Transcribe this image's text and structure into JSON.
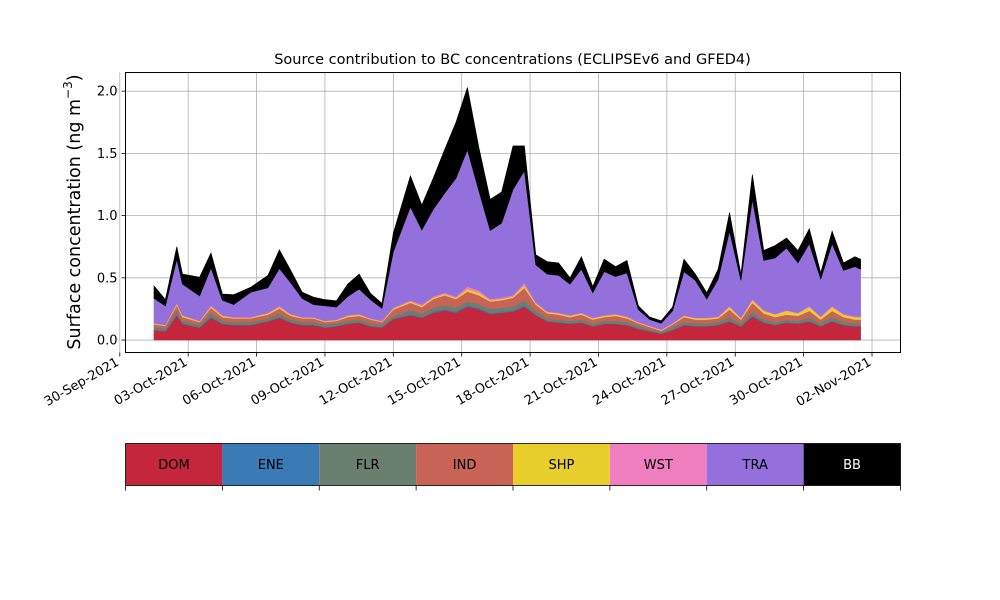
{
  "chart_data": {
    "type": "area",
    "stacked": true,
    "title": "Source contribution to BC concentrations (ECLIPSEv6 and GFED4)",
    "ylabel": "Surface concentration (ng m",
    "ylabel_sup": "−3",
    "ylabel_close": ")",
    "ylim": [
      -0.1,
      2.15
    ],
    "yticks": [
      0.0,
      0.5,
      1.0,
      1.5,
      2.0
    ],
    "ytick_labels": [
      "0.0",
      "0.5",
      "1.0",
      "1.5",
      "2.0"
    ],
    "xlim": [
      "2021-09-30T06:00",
      "2021-11-03T06:00"
    ],
    "xticks": [
      "2021-09-30",
      "2021-10-03",
      "2021-10-06",
      "2021-10-09",
      "2021-10-12",
      "2021-10-15",
      "2021-10-18",
      "2021-10-21",
      "2021-10-24",
      "2021-10-27",
      "2021-10-30",
      "2021-11-02"
    ],
    "xtick_labels": [
      "30-Sep-2021",
      "03-Oct-2021",
      "06-Oct-2021",
      "09-Oct-2021",
      "12-Oct-2021",
      "15-Oct-2021",
      "18-Oct-2021",
      "21-Oct-2021",
      "24-Oct-2021",
      "27-Oct-2021",
      "30-Oct-2021",
      "02-Nov-2021"
    ],
    "grid": true,
    "legend_position": "bottom colorbar",
    "x": [
      "2021-10-01T12:00",
      "2021-10-02T00:00",
      "2021-10-02T12:00",
      "2021-10-02T18:00",
      "2021-10-03T12:00",
      "2021-10-04T00:00",
      "2021-10-04T12:00",
      "2021-10-05T00:00",
      "2021-10-05T18:00",
      "2021-10-06T12:00",
      "2021-10-07T00:00",
      "2021-10-07T12:00",
      "2021-10-08T00:00",
      "2021-10-08T12:00",
      "2021-10-09T00:00",
      "2021-10-09T12:00",
      "2021-10-10T00:00",
      "2021-10-10T12:00",
      "2021-10-11T00:00",
      "2021-10-11T12:00",
      "2021-10-12T00:00",
      "2021-10-12T18:00",
      "2021-10-13T06:00",
      "2021-10-13T18:00",
      "2021-10-14T06:00",
      "2021-10-14T18:00",
      "2021-10-15T06:00",
      "2021-10-15T18:00",
      "2021-10-16T06:00",
      "2021-10-16T18:00",
      "2021-10-17T06:00",
      "2021-10-17T18:00",
      "2021-10-18T06:00",
      "2021-10-18T18:00",
      "2021-10-19T06:00",
      "2021-10-19T18:00",
      "2021-10-20T06:00",
      "2021-10-20T18:00",
      "2021-10-21T06:00",
      "2021-10-21T18:00",
      "2021-10-22T06:00",
      "2021-10-22T18:00",
      "2021-10-23T06:00",
      "2021-10-23T18:00",
      "2021-10-24T06:00",
      "2021-10-24T18:00",
      "2021-10-25T06:00",
      "2021-10-25T18:00",
      "2021-10-26T06:00",
      "2021-10-26T18:00",
      "2021-10-27T06:00",
      "2021-10-27T18:00",
      "2021-10-28T06:00",
      "2021-10-28T18:00",
      "2021-10-29T06:00",
      "2021-10-29T18:00",
      "2021-10-30T06:00",
      "2021-10-30T18:00",
      "2021-10-31T06:00",
      "2021-10-31T18:00",
      "2021-11-01T06:00",
      "2021-11-01T12:00"
    ],
    "series": [
      {
        "name": "DOM",
        "color": "#c4273b",
        "values": [
          0.08,
          0.07,
          0.2,
          0.13,
          0.1,
          0.18,
          0.13,
          0.12,
          0.12,
          0.15,
          0.18,
          0.14,
          0.12,
          0.12,
          0.1,
          0.11,
          0.13,
          0.14,
          0.11,
          0.1,
          0.17,
          0.2,
          0.18,
          0.22,
          0.24,
          0.22,
          0.27,
          0.25,
          0.21,
          0.22,
          0.23,
          0.27,
          0.2,
          0.15,
          0.14,
          0.13,
          0.14,
          0.11,
          0.13,
          0.13,
          0.12,
          0.09,
          0.07,
          0.05,
          0.08,
          0.12,
          0.11,
          0.11,
          0.12,
          0.15,
          0.11,
          0.19,
          0.14,
          0.12,
          0.14,
          0.13,
          0.15,
          0.11,
          0.15,
          0.12,
          0.11,
          0.11
        ]
      },
      {
        "name": "ENE",
        "color": "#3a7ab5",
        "values": [
          0.005,
          0.005,
          0.01,
          0.005,
          0.005,
          0.01,
          0.005,
          0.005,
          0.005,
          0.005,
          0.005,
          0.005,
          0.005,
          0.005,
          0.005,
          0.005,
          0.005,
          0.005,
          0.005,
          0.005,
          0.005,
          0.01,
          0.005,
          0.01,
          0.01,
          0.01,
          0.01,
          0.01,
          0.01,
          0.01,
          0.01,
          0.01,
          0.005,
          0.005,
          0.005,
          0.005,
          0.005,
          0.005,
          0.005,
          0.005,
          0.005,
          0.005,
          0.005,
          0.005,
          0.005,
          0.005,
          0.005,
          0.005,
          0.005,
          0.005,
          0.005,
          0.01,
          0.005,
          0.005,
          0.005,
          0.005,
          0.005,
          0.005,
          0.005,
          0.005,
          0.005,
          0.005
        ]
      },
      {
        "name": "FLR",
        "color": "#6b7f6e",
        "values": [
          0.02,
          0.02,
          0.03,
          0.02,
          0.02,
          0.03,
          0.02,
          0.02,
          0.02,
          0.02,
          0.03,
          0.02,
          0.02,
          0.02,
          0.02,
          0.02,
          0.02,
          0.02,
          0.02,
          0.02,
          0.02,
          0.03,
          0.03,
          0.03,
          0.03,
          0.03,
          0.03,
          0.03,
          0.03,
          0.03,
          0.03,
          0.04,
          0.03,
          0.02,
          0.02,
          0.02,
          0.02,
          0.02,
          0.02,
          0.02,
          0.02,
          0.02,
          0.01,
          0.01,
          0.02,
          0.02,
          0.02,
          0.02,
          0.02,
          0.03,
          0.02,
          0.03,
          0.02,
          0.02,
          0.02,
          0.02,
          0.03,
          0.02,
          0.03,
          0.02,
          0.02,
          0.02
        ]
      },
      {
        "name": "IND",
        "color": "#c86455",
        "values": [
          0.02,
          0.02,
          0.04,
          0.03,
          0.02,
          0.04,
          0.03,
          0.03,
          0.03,
          0.03,
          0.04,
          0.03,
          0.03,
          0.03,
          0.02,
          0.02,
          0.03,
          0.03,
          0.03,
          0.02,
          0.05,
          0.06,
          0.05,
          0.07,
          0.08,
          0.07,
          0.08,
          0.07,
          0.06,
          0.06,
          0.07,
          0.1,
          0.05,
          0.04,
          0.04,
          0.03,
          0.04,
          0.03,
          0.03,
          0.04,
          0.03,
          0.02,
          0.02,
          0.01,
          0.02,
          0.04,
          0.03,
          0.03,
          0.03,
          0.06,
          0.03,
          0.07,
          0.05,
          0.04,
          0.04,
          0.04,
          0.05,
          0.03,
          0.05,
          0.04,
          0.03,
          0.03
        ]
      },
      {
        "name": "SHP",
        "color": "#e8cf2e",
        "values": [
          0.005,
          0.005,
          0.01,
          0.01,
          0.005,
          0.01,
          0.01,
          0.005,
          0.005,
          0.01,
          0.01,
          0.01,
          0.005,
          0.005,
          0.005,
          0.005,
          0.01,
          0.01,
          0.005,
          0.005,
          0.01,
          0.01,
          0.01,
          0.01,
          0.01,
          0.01,
          0.02,
          0.02,
          0.01,
          0.01,
          0.01,
          0.02,
          0.01,
          0.01,
          0.01,
          0.01,
          0.01,
          0.01,
          0.01,
          0.01,
          0.01,
          0.005,
          0.005,
          0.005,
          0.005,
          0.01,
          0.01,
          0.01,
          0.01,
          0.02,
          0.01,
          0.02,
          0.02,
          0.02,
          0.03,
          0.02,
          0.03,
          0.02,
          0.03,
          0.02,
          0.02,
          0.02
        ]
      },
      {
        "name": "WST",
        "color": "#f07fbf",
        "values": [
          0.005,
          0.005,
          0.01,
          0.005,
          0.005,
          0.01,
          0.005,
          0.005,
          0.005,
          0.005,
          0.01,
          0.005,
          0.005,
          0.005,
          0.005,
          0.005,
          0.005,
          0.005,
          0.005,
          0.005,
          0.005,
          0.01,
          0.01,
          0.01,
          0.01,
          0.01,
          0.02,
          0.02,
          0.01,
          0.01,
          0.01,
          0.02,
          0.01,
          0.005,
          0.005,
          0.005,
          0.005,
          0.005,
          0.005,
          0.005,
          0.005,
          0.005,
          0.005,
          0.005,
          0.005,
          0.005,
          0.005,
          0.005,
          0.005,
          0.01,
          0.005,
          0.01,
          0.005,
          0.005,
          0.005,
          0.005,
          0.01,
          0.005,
          0.01,
          0.005,
          0.005,
          0.005
        ]
      },
      {
        "name": "TRA",
        "color": "#9370db",
        "values": [
          0.2,
          0.15,
          0.35,
          0.25,
          0.2,
          0.3,
          0.12,
          0.1,
          0.2,
          0.2,
          0.3,
          0.25,
          0.15,
          0.1,
          0.12,
          0.1,
          0.15,
          0.2,
          0.15,
          0.1,
          0.45,
          0.75,
          0.6,
          0.7,
          0.8,
          0.95,
          1.1,
          0.8,
          0.55,
          0.6,
          0.85,
          0.9,
          0.3,
          0.3,
          0.3,
          0.25,
          0.35,
          0.2,
          0.35,
          0.3,
          0.35,
          0.1,
          0.05,
          0.05,
          0.1,
          0.35,
          0.3,
          0.15,
          0.3,
          0.6,
          0.3,
          0.8,
          0.4,
          0.45,
          0.5,
          0.4,
          0.5,
          0.3,
          0.5,
          0.35,
          0.4,
          0.38
        ]
      },
      {
        "name": "BB",
        "color": "#000000",
        "values": [
          0.1,
          0.05,
          0.1,
          0.08,
          0.15,
          0.12,
          0.05,
          0.08,
          0.04,
          0.1,
          0.15,
          0.1,
          0.05,
          0.06,
          0.05,
          0.05,
          0.1,
          0.12,
          0.05,
          0.04,
          0.15,
          0.25,
          0.2,
          0.25,
          0.35,
          0.45,
          0.5,
          0.35,
          0.25,
          0.25,
          0.35,
          0.2,
          0.08,
          0.1,
          0.1,
          0.05,
          0.1,
          0.05,
          0.1,
          0.08,
          0.1,
          0.03,
          0.02,
          0.02,
          0.03,
          0.1,
          0.05,
          0.05,
          0.08,
          0.15,
          0.05,
          0.2,
          0.08,
          0.1,
          0.08,
          0.1,
          0.12,
          0.05,
          0.1,
          0.06,
          0.08,
          0.08
        ]
      }
    ],
    "legend": [
      {
        "label": "DOM",
        "color": "#c4273b",
        "text_color": "#000000"
      },
      {
        "label": "ENE",
        "color": "#3a7ab5",
        "text_color": "#000000"
      },
      {
        "label": "FLR",
        "color": "#6b7f6e",
        "text_color": "#000000"
      },
      {
        "label": "IND",
        "color": "#c86455",
        "text_color": "#000000"
      },
      {
        "label": "SHP",
        "color": "#e8cf2e",
        "text_color": "#000000"
      },
      {
        "label": "WST",
        "color": "#f07fbf",
        "text_color": "#000000"
      },
      {
        "label": "TRA",
        "color": "#9370db",
        "text_color": "#000000"
      },
      {
        "label": "BB",
        "color": "#000000",
        "text_color": "#ffffff"
      }
    ]
  }
}
